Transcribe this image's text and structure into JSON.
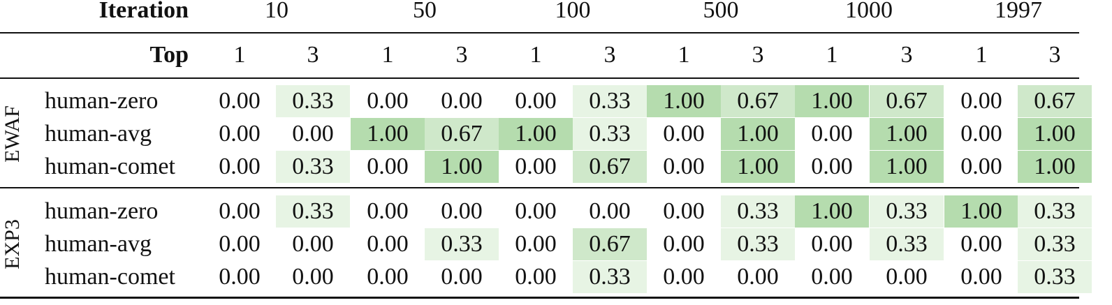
{
  "header": {
    "iteration_label": "Iteration",
    "iterations": [
      "10",
      "50",
      "100",
      "500",
      "1000",
      "1997"
    ],
    "top_label": "Top",
    "tops": [
      "1",
      "3",
      "1",
      "3",
      "1",
      "3",
      "1",
      "3",
      "1",
      "3",
      "1",
      "3"
    ]
  },
  "groups": [
    {
      "name": "EWAF",
      "rows": [
        {
          "label": "human-zero",
          "values": [
            "0.00",
            "0.33",
            "0.00",
            "0.00",
            "0.00",
            "0.33",
            "1.00",
            "0.67",
            "1.00",
            "0.67",
            "0.00",
            "0.67"
          ],
          "shade": [
            0,
            1,
            0,
            0,
            0,
            1,
            3,
            2,
            3,
            2,
            0,
            2
          ]
        },
        {
          "label": "human-avg",
          "values": [
            "0.00",
            "0.00",
            "1.00",
            "0.67",
            "1.00",
            "0.33",
            "0.00",
            "1.00",
            "0.00",
            "1.00",
            "0.00",
            "1.00"
          ],
          "shade": [
            0,
            0,
            3,
            2,
            3,
            1,
            0,
            3,
            0,
            3,
            0,
            3
          ]
        },
        {
          "label": "human-comet",
          "values": [
            "0.00",
            "0.33",
            "0.00",
            "1.00",
            "0.00",
            "0.67",
            "0.00",
            "1.00",
            "0.00",
            "1.00",
            "0.00",
            "1.00"
          ],
          "shade": [
            0,
            1,
            0,
            3,
            0,
            2,
            0,
            3,
            0,
            3,
            0,
            3
          ]
        }
      ]
    },
    {
      "name": "EXP3",
      "rows": [
        {
          "label": "human-zero",
          "values": [
            "0.00",
            "0.33",
            "0.00",
            "0.00",
            "0.00",
            "0.00",
            "0.00",
            "0.33",
            "1.00",
            "0.33",
            "1.00",
            "0.33"
          ],
          "shade": [
            0,
            1,
            0,
            0,
            0,
            0,
            0,
            1,
            3,
            1,
            3,
            1
          ]
        },
        {
          "label": "human-avg",
          "values": [
            "0.00",
            "0.00",
            "0.00",
            "0.33",
            "0.00",
            "0.67",
            "0.00",
            "0.33",
            "0.00",
            "0.33",
            "0.00",
            "0.33"
          ],
          "shade": [
            0,
            0,
            0,
            1,
            0,
            2,
            0,
            1,
            0,
            1,
            0,
            1
          ]
        },
        {
          "label": "human-comet",
          "values": [
            "0.00",
            "0.00",
            "0.00",
            "0.00",
            "0.00",
            "0.33",
            "0.00",
            "0.00",
            "0.00",
            "0.00",
            "0.00",
            "0.33"
          ],
          "shade": [
            0,
            0,
            0,
            0,
            0,
            1,
            0,
            0,
            0,
            0,
            0,
            1
          ]
        }
      ]
    }
  ]
}
